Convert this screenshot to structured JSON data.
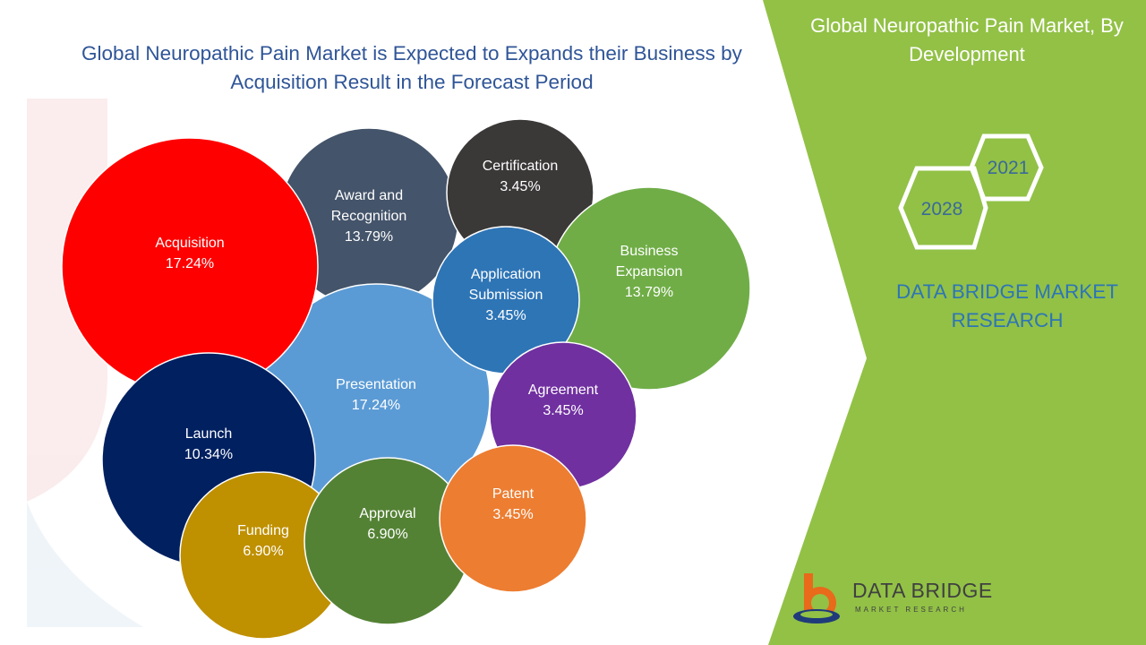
{
  "title": "Global Neuropathic Pain Market is Expected to Expands their Business by Acquisition Result in the Forecast Period",
  "side_panel": {
    "title": "Global Neuropathic Pain Market, By Development",
    "year_start": "2021",
    "year_end": "2028",
    "brand": "DATA BRIDGE MARKET RESEARCH",
    "colors": {
      "panel": "#92c146",
      "brand_text": "#2e75b6"
    }
  },
  "logo": {
    "name": "DATA BRIDGE",
    "tagline": "MARKET RESEARCH"
  },
  "chart_data": {
    "type": "bubble",
    "unit": "%",
    "series": [
      {
        "label": "Award and Recognition",
        "value": 13.79,
        "color": "#44546a"
      },
      {
        "label": "Certification",
        "value": 3.45,
        "color": "#3b3838"
      },
      {
        "label": "Business Expansion",
        "value": 13.79,
        "color": "#70ad47"
      },
      {
        "label": "Presentation",
        "value": 17.24,
        "color": "#5b9bd5"
      },
      {
        "label": "Acquisition",
        "value": 17.24,
        "color": "#ff0000"
      },
      {
        "label": "Application Submission",
        "value": 3.45,
        "color": "#2e75b6"
      },
      {
        "label": "Agreement",
        "value": 3.45,
        "color": "#7030a0"
      },
      {
        "label": "Launch",
        "value": 10.34,
        "color": "#002060"
      },
      {
        "label": "Funding",
        "value": 6.9,
        "color": "#bf9000"
      },
      {
        "label": "Approval",
        "value": 6.9,
        "color": "#548235"
      },
      {
        "label": "Patent",
        "value": 3.45,
        "color": "#ed7d31"
      }
    ]
  }
}
